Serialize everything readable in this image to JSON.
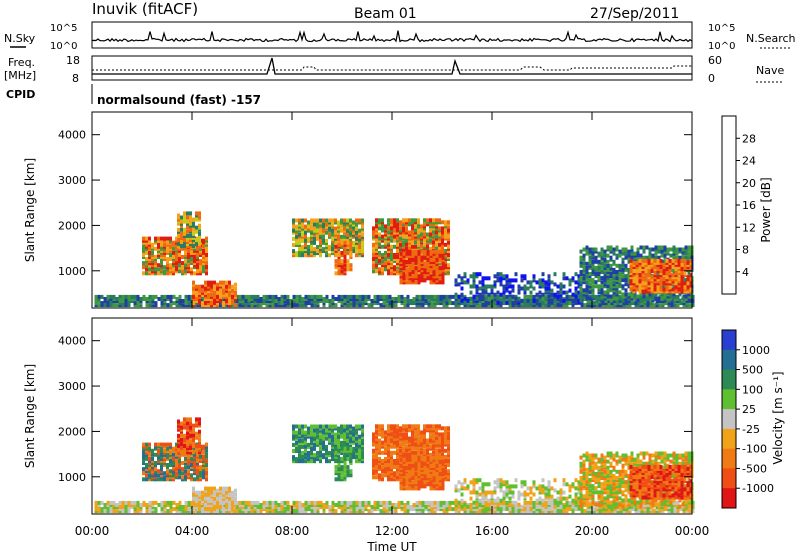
{
  "header": {
    "station": "Inuvik (fitACF)",
    "beam": "Beam 01",
    "date": "27/Sep/2011"
  },
  "side_labels": {
    "nsky": "N.Sky",
    "freq_line1": "Freq.",
    "freq_line2": "[MHz]",
    "cpid": "CPID",
    "nsearch": "N.Search",
    "nave": "Nave"
  },
  "cpid_text": "normalsound (fast) -157",
  "colors": {
    "power_scale": [
      "#1010f0",
      "#1f3fa3",
      "#2a7c5e",
      "#3f9a3f",
      "#c9c91a",
      "#f5a21a",
      "#f06a10",
      "#e01d10"
    ],
    "velocity_scale": [
      "#2a3fcf",
      "#236e93",
      "#2c8a55",
      "#5fbf30",
      "#c4c4c4",
      "#f0a318",
      "#f07b15",
      "#ef4e14",
      "#e01515"
    ]
  },
  "chart_data": [
    {
      "type": "line",
      "name": "noise-panel",
      "ylabel_left": "N.Sky",
      "ylabel_right": "N.Search",
      "y_ticks_left": [
        "10^5",
        "10^0"
      ],
      "y_ticks_right": [
        "10^5",
        "10^0"
      ],
      "scale": "log"
    },
    {
      "type": "line",
      "name": "frequency-panel",
      "ylabel_left": "Freq. [MHz]",
      "ylabel_right": "Nave",
      "y_ticks_left": [
        "18",
        "8"
      ],
      "y_ticks_right": [
        "60",
        "0"
      ],
      "ylim_left": [
        8,
        18
      ],
      "ylim_right": [
        0,
        60
      ]
    },
    {
      "type": "heatmap",
      "name": "power",
      "ylabel": "Slant Range [km]",
      "y_ticks": [
        "1000",
        "2000",
        "3000",
        "4000"
      ],
      "ylim": [
        180,
        4500
      ],
      "colorbar_label": "Power [dB]",
      "colorbar_ticks": [
        "4",
        "8",
        "12",
        "16",
        "20",
        "24",
        "28"
      ],
      "colorbar_range": [
        0,
        30
      ]
    },
    {
      "type": "heatmap",
      "name": "velocity",
      "ylabel": "Slant Range [km]",
      "y_ticks": [
        "1000",
        "2000",
        "3000",
        "4000"
      ],
      "ylim": [
        180,
        4500
      ],
      "colorbar_label": "Velocity [m s⁻¹]",
      "colorbar_ticks": [
        "1000",
        "500",
        "100",
        "25",
        "-25",
        "-100",
        "-500",
        "-1000"
      ],
      "x_ticks": [
        "00:00",
        "04:00",
        "08:00",
        "12:00",
        "16:00",
        "20:00",
        "00:00"
      ],
      "xlabel": "Time UT"
    }
  ]
}
